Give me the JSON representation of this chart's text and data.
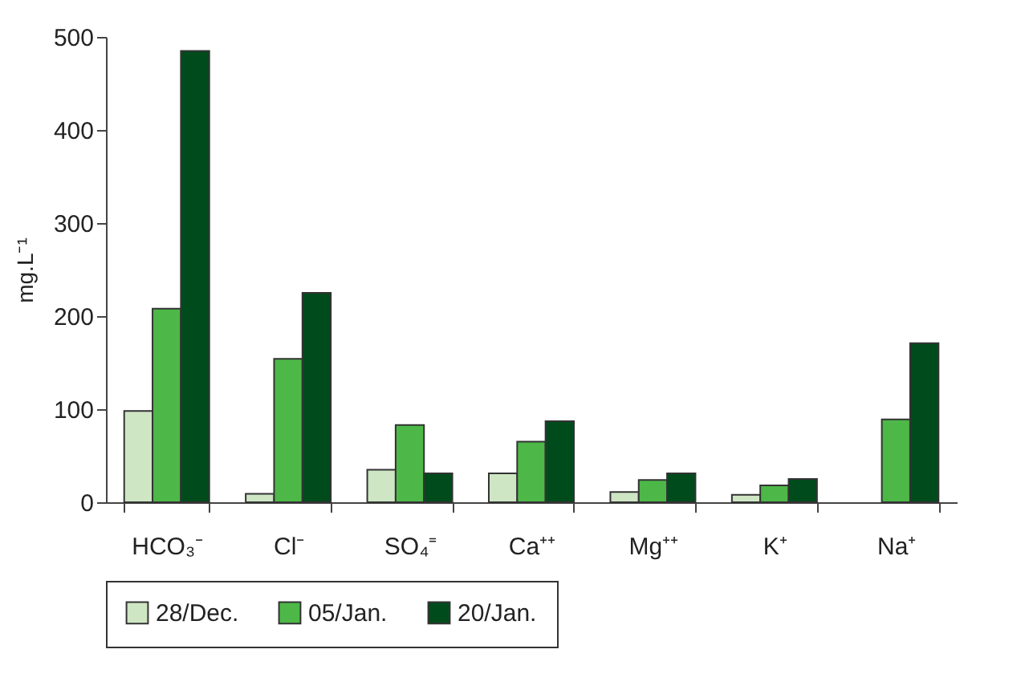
{
  "chart_data": {
    "type": "bar",
    "ylabel": "mg.L⁻¹",
    "categories": [
      "HCO₃⁻",
      "Cl⁻",
      "SO₄⁼",
      "Ca⁺⁺",
      "Mg⁺⁺",
      "K⁺",
      "Na⁺"
    ],
    "series": [
      {
        "name": "28/Dec.",
        "color": "#cfe6c4",
        "values": [
          98,
          9,
          35,
          31,
          11,
          8,
          null
        ]
      },
      {
        "name": "05/Jan.",
        "color": "#4db848",
        "values": [
          208,
          154,
          83,
          65,
          24,
          18,
          89
        ]
      },
      {
        "name": "20/Jan.",
        "color": "#004b1c",
        "values": [
          485,
          225,
          31,
          87,
          31,
          25,
          171
        ]
      }
    ],
    "ylim": [
      0,
      500
    ],
    "yticks": [
      0,
      100,
      200,
      300,
      400,
      500
    ],
    "grid": false,
    "legend": "bottom"
  }
}
